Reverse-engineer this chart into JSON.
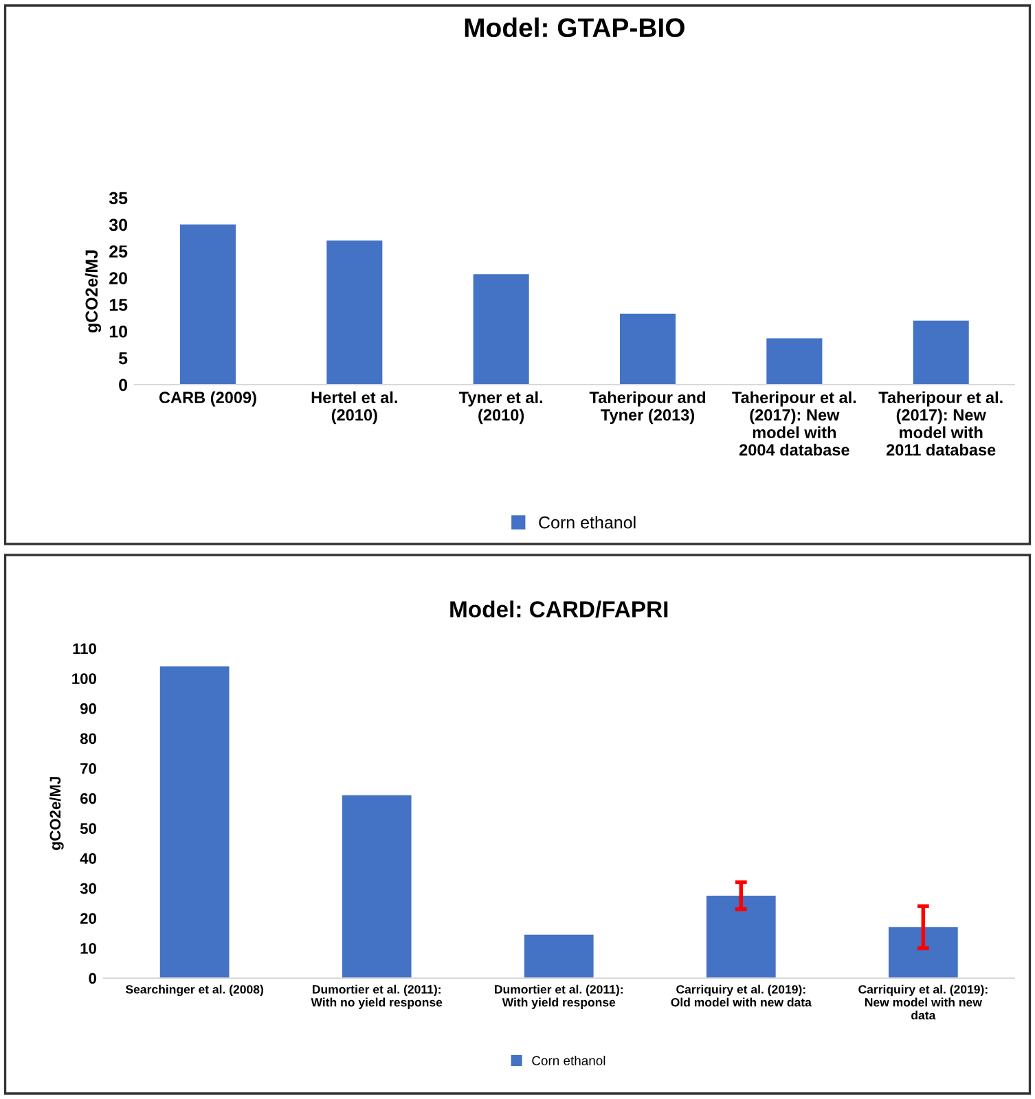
{
  "chart_data": [
    {
      "type": "bar",
      "title": "Model: GTAP-BIO",
      "ylabel": "gCO2e/MJ",
      "categories": [
        "CARB (2009)",
        "Hertel et al.\n(2010)",
        "Tyner et al.\n(2010)",
        "Taheripour and\nTyner (2013)",
        "Taheripour et al.\n(2017): New\nmodel with\n2004 database",
        "Taheripour et al.\n(2017): New\nmodel with\n2011 database"
      ],
      "series": [
        {
          "name": "Corn ethanol",
          "color": "#4472c4",
          "values": [
            30,
            27,
            20.7,
            13.3,
            8.7,
            12
          ]
        }
      ],
      "ylim": [
        0,
        35
      ],
      "yticks": [
        0,
        5,
        10,
        15,
        20,
        25,
        30,
        35
      ],
      "grid": false,
      "legend": "bottom"
    },
    {
      "type": "bar",
      "title": "Model: CARD/FAPRI",
      "ylabel": "gCO2e/MJ",
      "categories": [
        "Searchinger et al. (2008)",
        "Dumortier et al. (2011):\nWith no yield response",
        "Dumortier et al. (2011):\nWith yield response",
        "Carriquiry et al. (2019):\nOld model with new data",
        "Carriquiry et al. (2019):\nNew model with new\ndata"
      ],
      "series": [
        {
          "name": "Corn ethanol",
          "color": "#4472c4",
          "values": [
            104,
            61,
            14.5,
            27.5,
            17
          ],
          "errors": [
            null,
            null,
            null,
            [
              23,
              32
            ],
            [
              10,
              24
            ]
          ]
        }
      ],
      "ylim": [
        0,
        110
      ],
      "yticks": [
        0,
        10,
        20,
        30,
        40,
        50,
        60,
        70,
        80,
        90,
        100,
        110
      ],
      "grid": false,
      "legend": "bottom"
    }
  ]
}
